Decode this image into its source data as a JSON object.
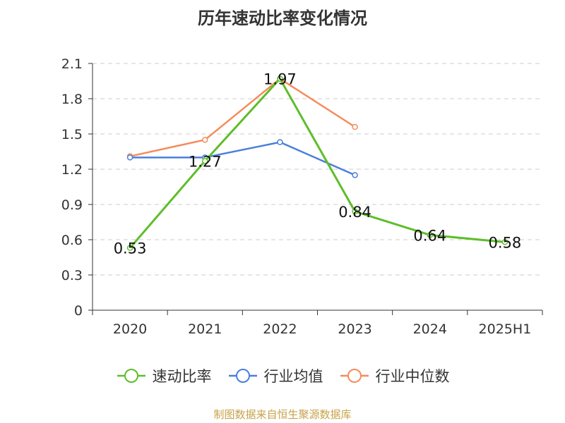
{
  "title": "历年速动比率变化情况",
  "source_note": "制图数据来自恒生聚源数据库",
  "colors": {
    "series_1": "#5dbe2a",
    "series_2": "#4a7fdc",
    "series_3": "#f58c5c",
    "axis": "#333333",
    "grid": "#cccccc",
    "source": "#c8a24a"
  },
  "chart_data": {
    "type": "line",
    "title": "历年速动比率变化情况",
    "xlabel": "",
    "ylabel": "",
    "categories": [
      "2020",
      "2021",
      "2022",
      "2023",
      "2024",
      "2025H1"
    ],
    "ylim": [
      0,
      2.1
    ],
    "yticks": [
      "0",
      "0.3",
      "0.6",
      "0.9",
      "1.2",
      "1.5",
      "1.8",
      "2.1"
    ],
    "grid": true,
    "legend_position": "bottom",
    "series": [
      {
        "name": "速动比率",
        "values": [
          0.53,
          1.27,
          1.97,
          0.84,
          0.64,
          0.58
        ],
        "labels": [
          "0.53",
          "1.27",
          "1.97",
          "0.84",
          "0.64",
          "0.58"
        ]
      },
      {
        "name": "行业均值",
        "values": [
          1.3,
          1.3,
          1.43,
          1.15,
          null,
          null
        ]
      },
      {
        "name": "行业中位数",
        "values": [
          1.31,
          1.45,
          1.97,
          1.56,
          null,
          null
        ]
      }
    ]
  }
}
